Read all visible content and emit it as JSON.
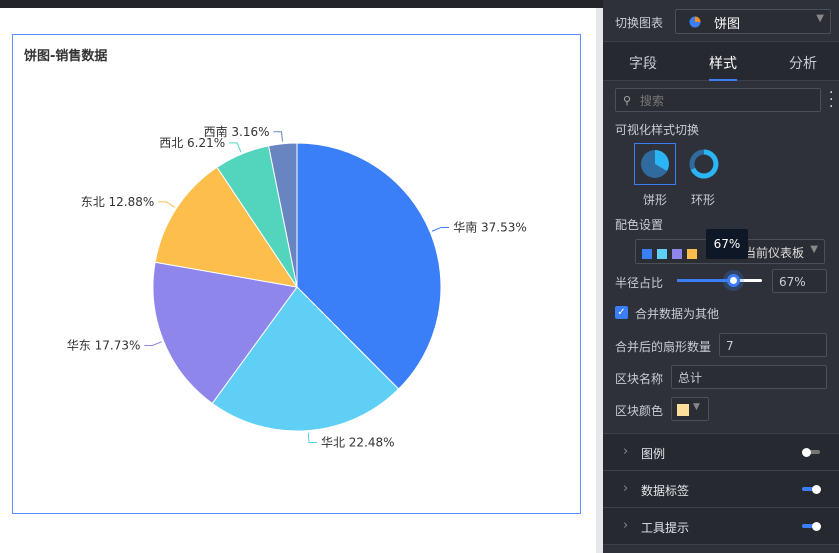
{
  "chart_card": {
    "title": "饼图-销售数据"
  },
  "chart_data": {
    "type": "pie",
    "title": "饼图-销售数据",
    "start": "top",
    "direction": "clockwise",
    "slices": [
      {
        "name": "华南",
        "value": 37.53,
        "label": "华南 37.53%",
        "color": "#3a7ef8"
      },
      {
        "name": "华北",
        "value": 22.48,
        "label": "华北 22.48%",
        "color": "#5fcff5"
      },
      {
        "name": "华东",
        "value": 17.73,
        "label": "华东 17.73%",
        "color": "#8f86ec"
      },
      {
        "name": "东北",
        "value": 12.88,
        "label": "东北 12.88%",
        "color": "#fdbe4b"
      },
      {
        "name": "西北",
        "value": 6.21,
        "label": "西北 6.21%",
        "color": "#52d4bd"
      },
      {
        "name": "西南",
        "value": 3.16,
        "label": "西南 3.16%",
        "color": "#6985c1"
      }
    ]
  },
  "panel": {
    "switch_chart_label": "切换图表",
    "chart_type": "饼图",
    "tabs": [
      "字段",
      "样式",
      "分析"
    ],
    "active_tab": "样式",
    "search_placeholder": "搜索",
    "style_switch_label": "可视化样式切换",
    "style_options": [
      {
        "label": "饼形",
        "selected": true
      },
      {
        "label": "环形",
        "selected": false
      }
    ],
    "color_label": "配色设置",
    "palette_colors": [
      "#3a7ef8",
      "#5fcff5",
      "#8f86ec",
      "#fdbe4b"
    ],
    "palette_name": "当前仪表板",
    "radius_label": "半径占比",
    "radius_value": "67%",
    "radius_fraction": 0.67,
    "tooltip": "67%",
    "merge_label": "合并数据为其他",
    "merge_checked": true,
    "merge_count_label": "合并后的扇形数量",
    "merge_count": "7",
    "block_name_label": "区块名称",
    "block_name": "总计",
    "block_color_label": "区块颜色",
    "block_color": "#fddf9c",
    "sections": [
      {
        "label": "图例",
        "on": false
      },
      {
        "label": "数据标签",
        "on": true
      },
      {
        "label": "工具提示",
        "on": true
      }
    ]
  }
}
